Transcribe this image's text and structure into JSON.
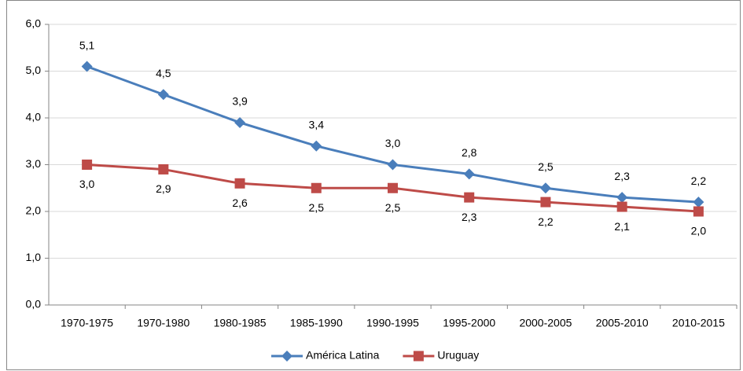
{
  "chart_data": {
    "type": "line",
    "categories": [
      "1970-1975",
      "1970-1980",
      "1980-1985",
      "1985-1990",
      "1990-1995",
      "1995-2000",
      "2000-2005",
      "2005-2010",
      "2010-2015"
    ],
    "series": [
      {
        "name": "América Latina",
        "color": "#4a7ebb",
        "marker": "diamond",
        "values": [
          5.1,
          4.5,
          3.9,
          3.4,
          3.0,
          2.8,
          2.5,
          2.3,
          2.2
        ],
        "value_labels": [
          "5,1",
          "4,5",
          "3,9",
          "3,4",
          "3,0",
          "2,8",
          "2,5",
          "2,3",
          "2,2"
        ]
      },
      {
        "name": "Uruguay",
        "color": "#be4b48",
        "marker": "square",
        "values": [
          3.0,
          2.9,
          2.6,
          2.5,
          2.5,
          2.3,
          2.2,
          2.1,
          2.0
        ],
        "value_labels": [
          "3,0",
          "2,9",
          "2,6",
          "2,5",
          "2,5",
          "2,3",
          "2,2",
          "2,1",
          "2,0"
        ]
      }
    ],
    "ylim": [
      0,
      6
    ],
    "yticks": [
      {
        "value": 0,
        "label": "0,0"
      },
      {
        "value": 1,
        "label": "1,0"
      },
      {
        "value": 2,
        "label": "2,0"
      },
      {
        "value": 3,
        "label": "3,0"
      },
      {
        "value": 4,
        "label": "4,0"
      },
      {
        "value": 5,
        "label": "5,0"
      },
      {
        "value": 6,
        "label": "6,0"
      }
    ],
    "grid": true,
    "legend": "bottom"
  }
}
